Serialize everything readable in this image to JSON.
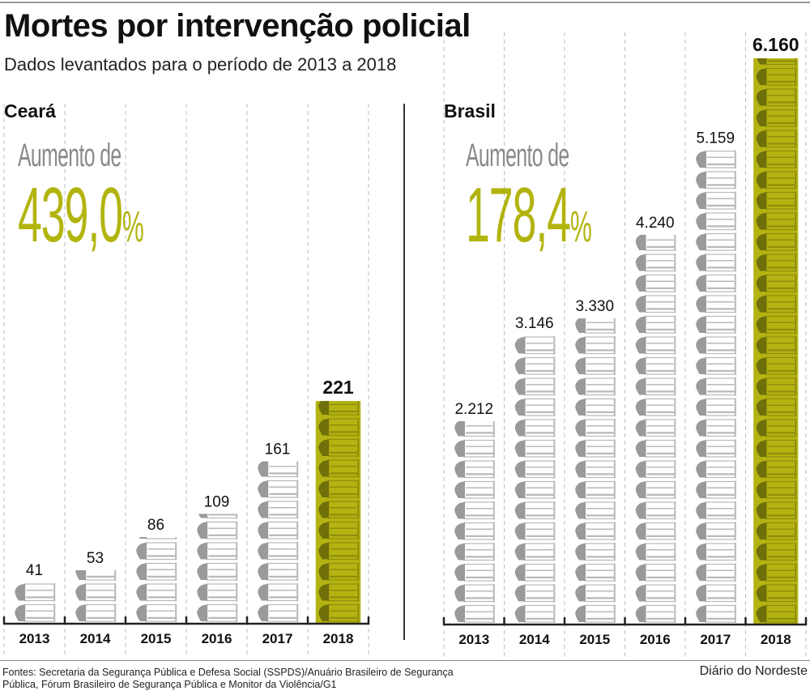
{
  "header": {
    "title": "Mortes por intervenção policial",
    "subtitle": "Dados levantados para o período de 2013 a 2018"
  },
  "panels": [
    {
      "name": "Ceará",
      "increase_label": "Aumento de",
      "increase_value": "439,0",
      "increase_unit": "%"
    },
    {
      "name": "Brasil",
      "increase_label": "Aumento de",
      "increase_value": "178,4",
      "increase_unit": "%"
    }
  ],
  "footer": {
    "sources": "Fontes: Secretaria da Segurança Pública e Defesa Social (SSPDS)/Anuário Brasileiro de Segurança Pública, Fórum Brasileiro de Segurança Pública e Monitor da Violência/G1",
    "credit": "Diário do Nordeste"
  },
  "colors": {
    "highlight": "#b5b312",
    "highlight_dark": "#6f700a",
    "bullet_gray": "#9a9a9a",
    "bullet_light": "#d4d4d4",
    "axis": "#222222"
  },
  "chart_data": [
    {
      "type": "bar",
      "title": "Ceará",
      "categories": [
        "2013",
        "2014",
        "2015",
        "2016",
        "2017",
        "2018"
      ],
      "values": [
        41,
        53,
        86,
        109,
        161,
        221
      ],
      "value_labels": [
        "41",
        "53",
        "86",
        "109",
        "161",
        "221"
      ],
      "highlight_category": "2018",
      "annotation": "Aumento de 439,0%",
      "xlabel": "",
      "ylabel": "",
      "ylim": [
        0,
        221
      ],
      "grid": "vertical dashed separators",
      "legend": "none"
    },
    {
      "type": "bar",
      "title": "Brasil",
      "categories": [
        "2013",
        "2014",
        "2015",
        "2016",
        "2017",
        "2018"
      ],
      "values": [
        2212,
        3146,
        3330,
        4240,
        5159,
        6160
      ],
      "value_labels": [
        "2.212",
        "3.146",
        "3.330",
        "4.240",
        "5.159",
        "6.160"
      ],
      "highlight_category": "2018",
      "annotation": "Aumento de 178,4%",
      "xlabel": "",
      "ylabel": "",
      "ylim": [
        0,
        6160
      ],
      "grid": "vertical dashed separators",
      "legend": "none"
    }
  ]
}
